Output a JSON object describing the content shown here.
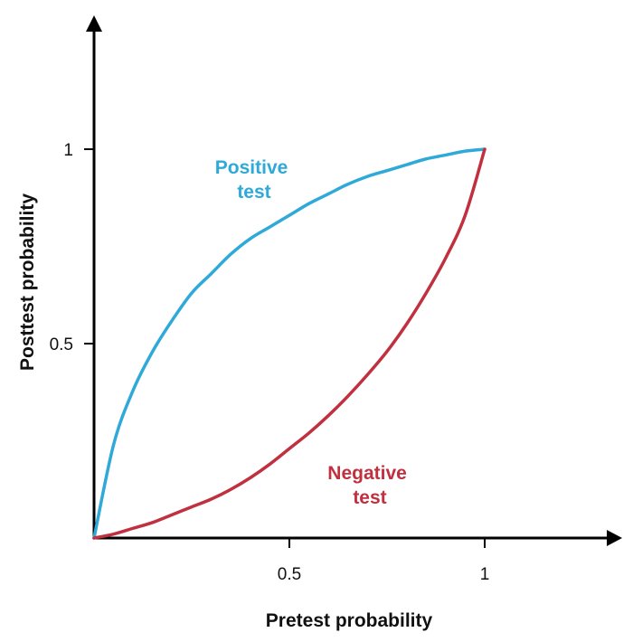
{
  "chart_data": {
    "type": "line",
    "title": "",
    "xlabel": "Pretest probability",
    "ylabel": "Posttest probability",
    "xlim": [
      0,
      1.35
    ],
    "ylim": [
      0,
      1.2
    ],
    "x_ticks": [
      {
        "value": 0.5,
        "label": "0.5"
      },
      {
        "value": 1,
        "label": "1"
      }
    ],
    "y_ticks": [
      {
        "value": 0.5,
        "label": "0.5"
      },
      {
        "value": 1,
        "label": "1"
      }
    ],
    "grid": false,
    "legend": "none",
    "series": [
      {
        "label_lines": [
          "Positive",
          "test"
        ],
        "color": "#2fa9d8",
        "x": [
          0,
          0.05,
          0.1,
          0.15,
          0.2,
          0.25,
          0.3,
          0.35,
          0.4,
          0.45,
          0.5,
          0.55,
          0.6,
          0.65,
          0.7,
          0.75,
          0.8,
          0.85,
          0.9,
          0.95,
          1
        ],
        "y": [
          0,
          0.24,
          0.38,
          0.48,
          0.56,
          0.63,
          0.68,
          0.73,
          0.77,
          0.8,
          0.83,
          0.86,
          0.885,
          0.91,
          0.93,
          0.945,
          0.96,
          0.975,
          0.985,
          0.995,
          1
        ]
      },
      {
        "label_lines": [
          "Negative",
          "test"
        ],
        "color": "#c0303f",
        "x": [
          0,
          0.05,
          0.1,
          0.15,
          0.2,
          0.25,
          0.3,
          0.35,
          0.4,
          0.45,
          0.5,
          0.55,
          0.6,
          0.65,
          0.7,
          0.75,
          0.8,
          0.85,
          0.9,
          0.95,
          1
        ],
        "y": [
          0,
          0.01,
          0.025,
          0.04,
          0.06,
          0.08,
          0.1,
          0.125,
          0.155,
          0.19,
          0.23,
          0.27,
          0.315,
          0.365,
          0.42,
          0.48,
          0.55,
          0.63,
          0.72,
          0.83,
          1
        ]
      }
    ]
  }
}
